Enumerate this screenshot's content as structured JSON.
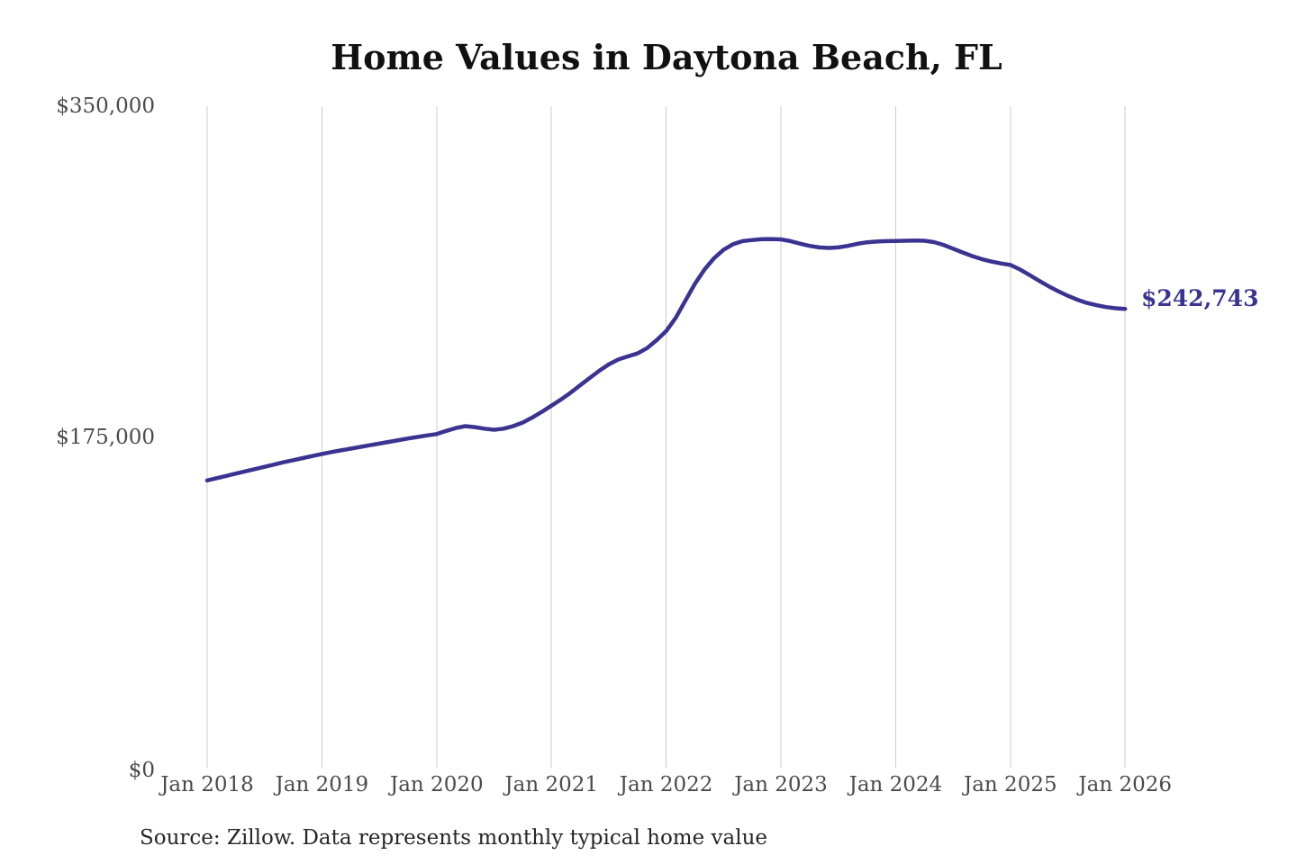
{
  "chart_data": {
    "type": "line",
    "title": "Home Values in Daytona Beach, FL",
    "source_note": "Source: Zillow. Data represents monthly typical home value",
    "end_label": "$242,743",
    "latest_value": 242743,
    "x_interval": "monthly",
    "x_start": "Jan 2018",
    "x_end": "Jan 2026",
    "x_tick_labels": [
      "Jan 2018",
      "Jan 2019",
      "Jan 2020",
      "Jan 2021",
      "Jan 2022",
      "Jan 2023",
      "Jan 2024",
      "Jan 2025",
      "Jan 2026"
    ],
    "y_tick_labels": [
      "$0",
      "$175,000",
      "$350,000"
    ],
    "y_tick_values": [
      0,
      175000,
      350000
    ],
    "ylim": [
      0,
      350000
    ],
    "grid": "vertical-only",
    "legend": "none",
    "series": [
      {
        "name": "Typical home value",
        "color": "#3a3391",
        "values": [
          152000,
          153200,
          154400,
          155600,
          156800,
          158000,
          159200,
          160400,
          161600,
          162700,
          163800,
          164900,
          166000,
          167000,
          167900,
          168800,
          169700,
          170600,
          171500,
          172400,
          173300,
          174200,
          175000,
          175800,
          176500,
          178200,
          179700,
          180700,
          180200,
          179400,
          178800,
          179400,
          180700,
          182600,
          185300,
          188300,
          191500,
          194800,
          198400,
          202300,
          206200,
          210000,
          213400,
          216000,
          217600,
          219200,
          222000,
          226200,
          231000,
          238000,
          247000,
          256000,
          263500,
          269500,
          274000,
          277000,
          278600,
          279200,
          279600,
          279700,
          279500,
          278600,
          277300,
          276100,
          275300,
          275000,
          275300,
          276100,
          277200,
          278000,
          278400,
          278600,
          278700,
          278800,
          278900,
          278800,
          278100,
          276600,
          274600,
          272600,
          270700,
          269100,
          267800,
          266800,
          266000,
          263600,
          260700,
          257600,
          254700,
          252100,
          249700,
          247600,
          245900,
          244700,
          243700,
          243100,
          242743
        ]
      }
    ],
    "colors": {
      "line": "#3a3391",
      "grid": "#cccccc",
      "axis_text": "#4a4a4a",
      "title_text": "#111111",
      "source_text": "#262626"
    }
  }
}
